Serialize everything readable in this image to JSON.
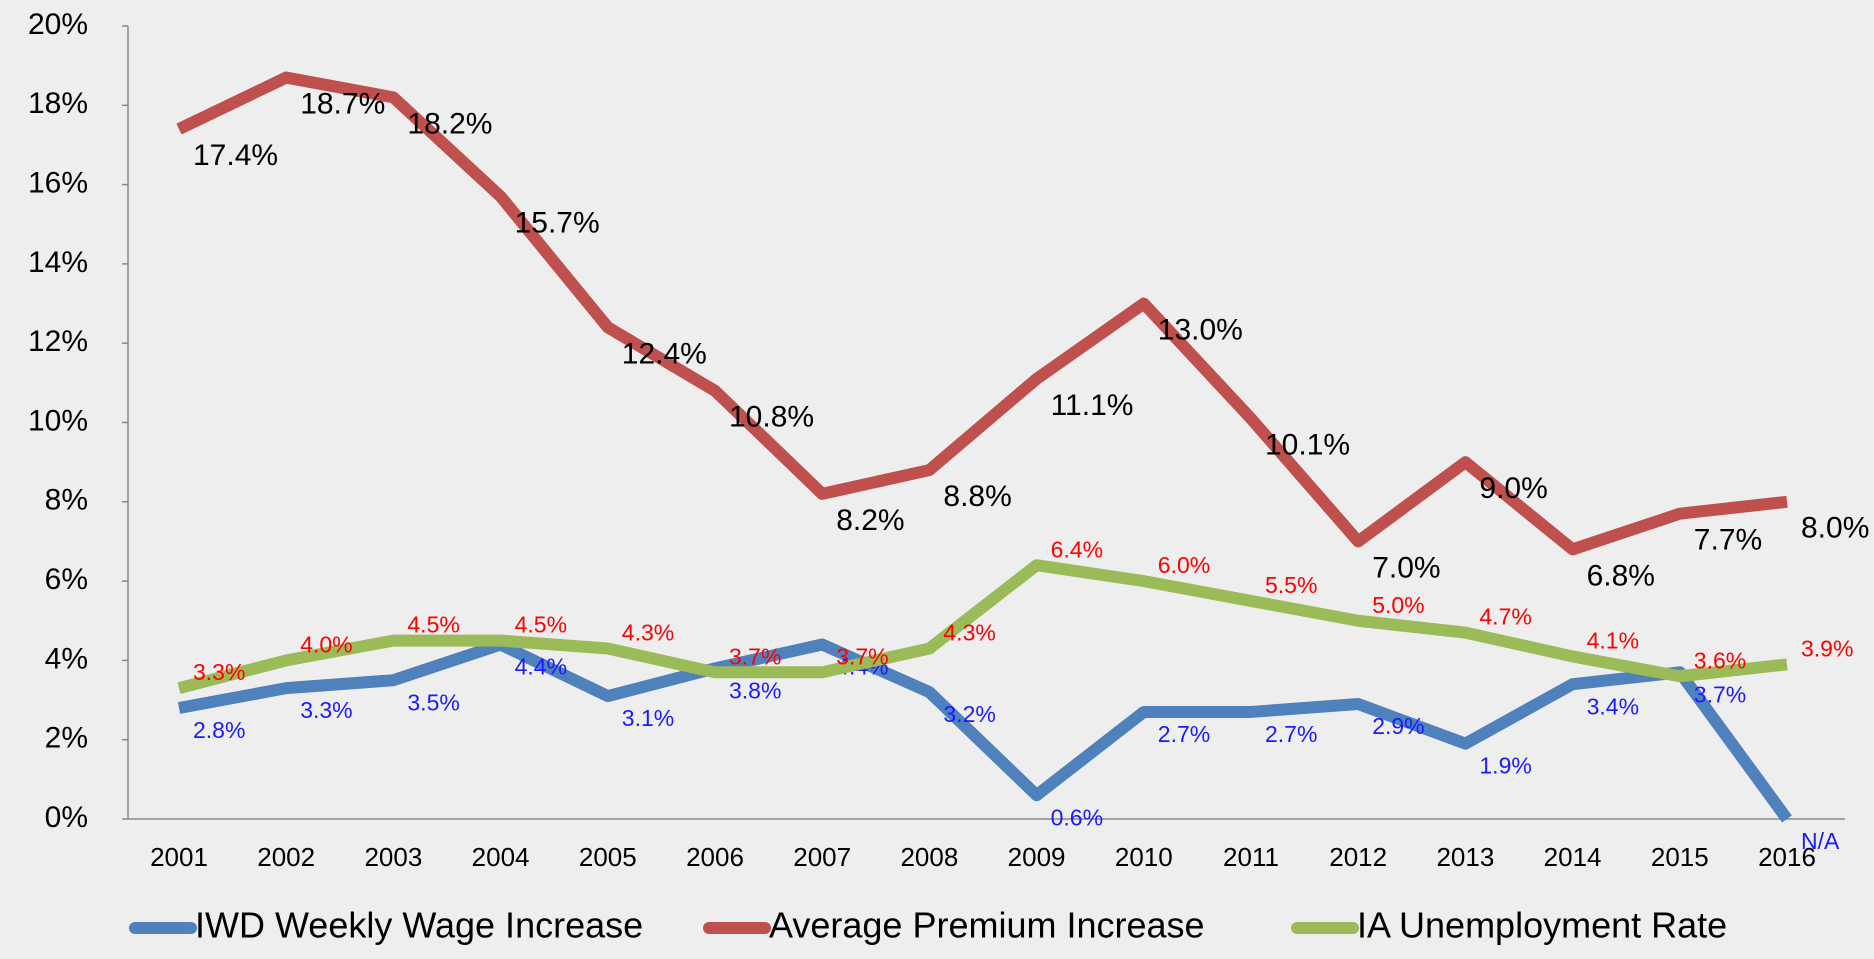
{
  "chart_data": {
    "type": "line",
    "categories": [
      "2001",
      "2002",
      "2003",
      "2004",
      "2005",
      "2006",
      "2007",
      "2008",
      "2009",
      "2010",
      "2011",
      "2012",
      "2013",
      "2014",
      "2015",
      "2016"
    ],
    "ylim": [
      0,
      20
    ],
    "yticks": [
      {
        "value": 0,
        "label": "0%"
      },
      {
        "value": 2,
        "label": "2%"
      },
      {
        "value": 4,
        "label": "4%"
      },
      {
        "value": 6,
        "label": "6%"
      },
      {
        "value": 8,
        "label": "8%"
      },
      {
        "value": 10,
        "label": "10%"
      },
      {
        "value": 12,
        "label": "12%"
      },
      {
        "value": 14,
        "label": "14%"
      },
      {
        "value": 16,
        "label": "16%"
      },
      {
        "value": 18,
        "label": "18%"
      },
      {
        "value": 20,
        "label": "20%"
      }
    ],
    "grid": false,
    "legend": "bottom",
    "series": [
      {
        "name": "IWD Weekly Wage Increase",
        "color": "#4f81bd",
        "label_color": "#1a1aff",
        "values": [
          2.8,
          3.3,
          3.5,
          4.4,
          3.1,
          3.8,
          4.4,
          3.2,
          0.6,
          2.7,
          2.7,
          2.9,
          1.9,
          3.4,
          3.7,
          0
        ],
        "value_labels": [
          "2.8%",
          "3.3%",
          "3.5%",
          "4.4%",
          "3.1%",
          "3.8%",
          "4.4%",
          "3.2%",
          "0.6%",
          "2.7%",
          "2.7%",
          "2.9%",
          "1.9%",
          "3.4%",
          "3.7%",
          "N/A"
        ]
      },
      {
        "name": "Average Premium Increase",
        "color": "#c0504d",
        "label_color": "#000000",
        "values": [
          17.4,
          18.7,
          18.2,
          15.7,
          12.4,
          10.8,
          8.2,
          8.8,
          11.1,
          13.0,
          10.1,
          7.0,
          9.0,
          6.8,
          7.7,
          8.0
        ],
        "value_labels": [
          "17.4%",
          "18.7%",
          "18.2%",
          "15.7%",
          "12.4%",
          "10.8%",
          "8.2%",
          "8.8%",
          "11.1%",
          "13.0%",
          "10.1%",
          "7.0%",
          "9.0%",
          "6.8%",
          "7.7%",
          "8.0%"
        ]
      },
      {
        "name": "IA Unemployment Rate",
        "color": "#9bbb59",
        "label_color": "#ff0000",
        "values": [
          3.3,
          4.0,
          4.5,
          4.5,
          4.3,
          3.7,
          3.7,
          4.3,
          6.4,
          6.0,
          5.5,
          5.0,
          4.7,
          4.1,
          3.6,
          3.9
        ],
        "value_labels": [
          "3.3%",
          "4.0%",
          "4.5%",
          "4.5%",
          "4.3%",
          "3.7%",
          "3.7%",
          "4.3%",
          "6.4%",
          "6.0%",
          "5.5%",
          "5.0%",
          "4.7%",
          "4.1%",
          "3.6%",
          "3.9%"
        ]
      }
    ]
  }
}
